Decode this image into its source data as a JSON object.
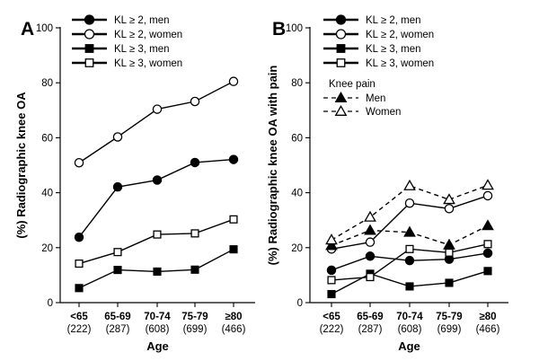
{
  "chart_data": [
    {
      "panel_label": "A",
      "type": "line",
      "ylabel": "(%) Radiographic knee OA",
      "xlabel": "Age",
      "ylim": [
        0,
        100
      ],
      "yticks": [
        0,
        20,
        40,
        60,
        80,
        100
      ],
      "categories": [
        "<65",
        "65-69",
        "70-74",
        "75-79",
        "≥80"
      ],
      "category_counts": [
        "(222)",
        "(287)",
        "(608)",
        "(699)",
        "(466)"
      ],
      "legend_position": "top-left",
      "series": [
        {
          "name": "KL ≥ 2, men",
          "marker": "circle-filled",
          "dashed": false,
          "values": [
            23.8,
            42.1,
            44.6,
            51.0,
            52.1
          ]
        },
        {
          "name": "KL ≥ 2, women",
          "marker": "circle-open",
          "dashed": false,
          "values": [
            50.9,
            60.3,
            70.4,
            73.2,
            80.5
          ]
        },
        {
          "name": "KL ≥ 3, men",
          "marker": "square-filled",
          "dashed": false,
          "values": [
            5.3,
            11.9,
            11.3,
            12.0,
            19.4
          ]
        },
        {
          "name": "KL ≥ 3, women",
          "marker": "square-open",
          "dashed": false,
          "values": [
            14.2,
            18.4,
            24.8,
            25.2,
            30.3
          ]
        }
      ]
    },
    {
      "panel_label": "B",
      "type": "line",
      "ylabel": "(%) Radiographic knee OA with pain",
      "xlabel": "Age",
      "ylim": [
        0,
        100
      ],
      "yticks": [
        0,
        20,
        40,
        60,
        80,
        100
      ],
      "categories": [
        "<65",
        "65-69",
        "70-74",
        "75-79",
        "≥80"
      ],
      "category_counts": [
        "(222)",
        "(287)",
        "(608)",
        "(699)",
        "(466)"
      ],
      "legend_position": "top-left",
      "legend_group_title": "Knee pain",
      "series": [
        {
          "name": "KL ≥ 2, men",
          "marker": "circle-filled",
          "dashed": false,
          "values": [
            11.8,
            16.9,
            15.3,
            15.8,
            18.0
          ]
        },
        {
          "name": "KL ≥ 2, women",
          "marker": "circle-open",
          "dashed": false,
          "values": [
            19.5,
            22.0,
            36.2,
            34.2,
            38.9
          ]
        },
        {
          "name": "KL ≥ 3, men",
          "marker": "square-filled",
          "dashed": false,
          "values": [
            3.1,
            10.5,
            5.9,
            7.2,
            11.5
          ]
        },
        {
          "name": "KL ≥ 3, women",
          "marker": "square-open",
          "dashed": false,
          "values": [
            8.2,
            9.3,
            19.5,
            18.2,
            21.3
          ]
        },
        {
          "name": "Men",
          "marker": "triangle-filled",
          "dashed": true,
          "values": [
            20.8,
            26.3,
            25.6,
            21.0,
            28.0
          ]
        },
        {
          "name": "Women",
          "marker": "triangle-open",
          "dashed": true,
          "values": [
            22.8,
            31.1,
            42.5,
            37.5,
            42.7
          ]
        }
      ]
    }
  ]
}
